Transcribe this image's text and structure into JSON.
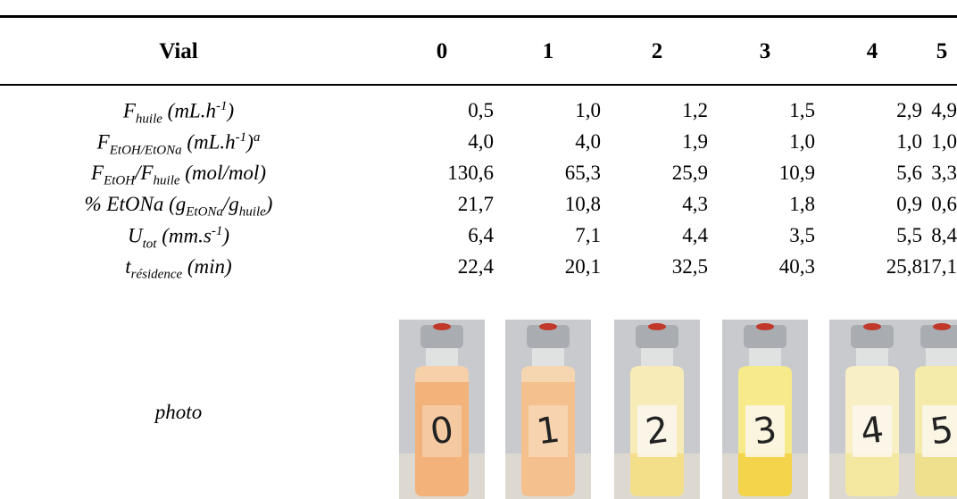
{
  "table": {
    "header": [
      "Vial",
      "0",
      "1",
      "2",
      "3",
      "4",
      "5"
    ],
    "rows": [
      {
        "label": [
          "F",
          {
            "sub": "huile"
          },
          " (mL.h",
          {
            "sup": "-1"
          },
          ")"
        ],
        "values": [
          "0,5",
          "1,0",
          "1,2",
          "1,5",
          "2,9",
          "4,9"
        ]
      },
      {
        "label": [
          "F",
          {
            "sub": "EtOH/EtONa"
          },
          " (mL.h",
          {
            "sup": "-1"
          },
          ")",
          {
            "sup": "a"
          }
        ],
        "values": [
          "4,0",
          "4,0",
          "1,9",
          "1,0",
          "1,0",
          "1,0"
        ]
      },
      {
        "label": [
          "F",
          {
            "sub": "EtOH"
          },
          "/F",
          {
            "sub": "huile"
          },
          " (mol/mol)"
        ],
        "values": [
          "130,6",
          "65,3",
          "25,9",
          "10,9",
          "5,6",
          "3,3"
        ]
      },
      {
        "label": [
          "% EtONa (g",
          {
            "sub": "EtONa"
          },
          "/g",
          {
            "sub": "huile"
          },
          ")"
        ],
        "values": [
          "21,7",
          "10,8",
          "4,3",
          "1,8",
          "0,9",
          "0,6"
        ]
      },
      {
        "label": [
          "U",
          {
            "sub": "tot"
          },
          " (mm.s",
          {
            "sup": "-1"
          },
          ")"
        ],
        "values": [
          "6,4",
          "7,1",
          "4,4",
          "3,5",
          "5,5",
          "8,4"
        ]
      },
      {
        "label": [
          "t",
          {
            "sub": "résidence"
          },
          " (min)"
        ],
        "values": [
          "22,4",
          "20,1",
          "32,5",
          "40,3",
          "25,8",
          "17,1"
        ]
      }
    ],
    "photo_label": "photo"
  }
}
